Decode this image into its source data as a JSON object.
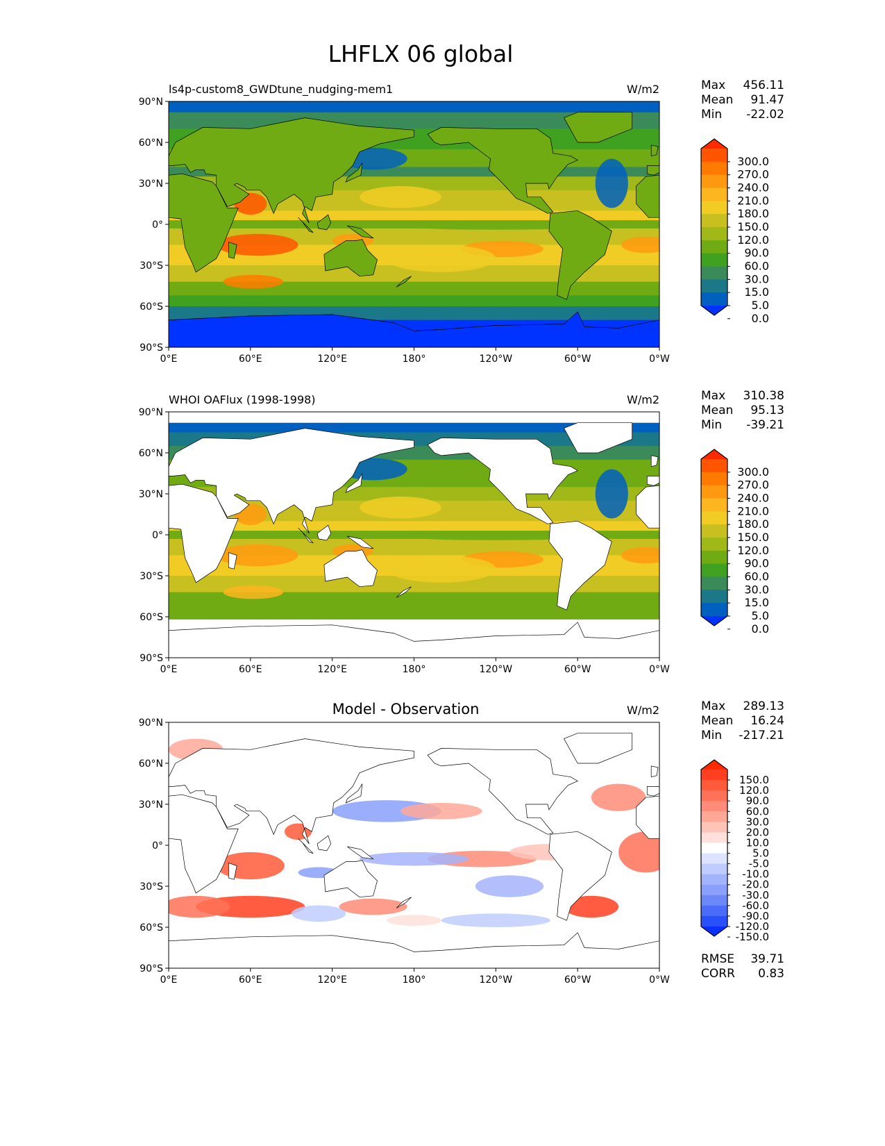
{
  "title": "LHFLX 06 global",
  "axes": {
    "lat_ticks": [
      "90°N",
      "60°N",
      "30°N",
      "0°",
      "30°S",
      "60°S",
      "90°S"
    ],
    "lon_ticks": [
      "0°E",
      "60°E",
      "120°E",
      "180°",
      "120°W",
      "60°W",
      "0°W"
    ]
  },
  "panels": [
    {
      "subtitle": "ls4p-custom8_GWDtune_nudging-mem1",
      "center_title": "",
      "units": "W/m2",
      "stats": [
        {
          "label": "Max",
          "value": "456.11"
        },
        {
          "label": "Mean",
          "value": "91.47"
        },
        {
          "label": "Min",
          "value": "-22.02"
        }
      ],
      "colorbar": {
        "labels": [
          "300.0",
          "270.0",
          "240.0",
          "210.0",
          "180.0",
          "150.0",
          "120.0",
          "90.0",
          "60.0",
          "30.0",
          "15.0",
          "5.0",
          "0.0"
        ],
        "colors": [
          "#ff2a00",
          "#ff5500",
          "#ff7a00",
          "#ff9a10",
          "#fdb520",
          "#f0cc25",
          "#c8c020",
          "#a0b818",
          "#70ab14",
          "#40a020",
          "#3a8a5a",
          "#1a7888",
          "#0060c0",
          "#0033ff"
        ]
      }
    },
    {
      "subtitle": "WHOI OAFlux (1998-1998)",
      "center_title": "",
      "units": "W/m2",
      "stats": [
        {
          "label": "Max",
          "value": "310.38"
        },
        {
          "label": "Mean",
          "value": "95.13"
        },
        {
          "label": "Min",
          "value": "-39.21"
        }
      ],
      "colorbar": {
        "labels": [
          "300.0",
          "270.0",
          "240.0",
          "210.0",
          "180.0",
          "150.0",
          "120.0",
          "90.0",
          "60.0",
          "30.0",
          "15.0",
          "5.0",
          "0.0"
        ],
        "colors": [
          "#ff2a00",
          "#ff5500",
          "#ff7a00",
          "#ff9a10",
          "#fdb520",
          "#f0cc25",
          "#c8c020",
          "#a0b818",
          "#70ab14",
          "#40a020",
          "#3a8a5a",
          "#1a7888",
          "#0060c0",
          "#0033ff"
        ]
      }
    },
    {
      "subtitle": "",
      "center_title": "Model - Observation",
      "units": "W/m2",
      "stats": [
        {
          "label": "Max",
          "value": "289.13"
        },
        {
          "label": "Mean",
          "value": "16.24"
        },
        {
          "label": "Min",
          "value": "-217.21"
        }
      ],
      "colorbar": {
        "labels": [
          "150.0",
          "120.0",
          "90.0",
          "60.0",
          "30.0",
          "20.0",
          "10.0",
          "5.0",
          "-5.0",
          "-10.0",
          "-20.0",
          "-30.0",
          "-60.0",
          "-90.0",
          "-120.0",
          "-150.0"
        ],
        "colors": [
          "#ff2a00",
          "#ff4020",
          "#ff5a3a",
          "#ff7258",
          "#ff8c78",
          "#ffa898",
          "#ffc4b8",
          "#ffe0da",
          "#ffffff",
          "#dde4ff",
          "#c0ccff",
          "#a4b4fc",
          "#8aa0fa",
          "#6c88f8",
          "#4a6cf8",
          "#2a50fa",
          "#0a30ff"
        ]
      },
      "metrics": [
        {
          "label": "RMSE",
          "value": "39.71"
        },
        {
          "label": "CORR",
          "value": "0.83"
        }
      ]
    }
  ]
}
